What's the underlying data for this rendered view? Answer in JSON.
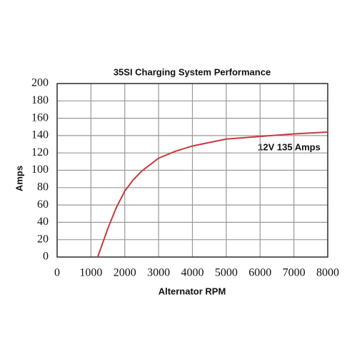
{
  "chart_data": {
    "type": "line",
    "title": "35SI Charging System Performance",
    "x_label": "Alternator RPM",
    "y_label": "Amps",
    "annotation": "12V 135 Amps",
    "x": [
      1200,
      1500,
      1750,
      2000,
      2250,
      2500,
      3000,
      3500,
      4000,
      5000,
      6000,
      7000,
      8000
    ],
    "series": [
      {
        "color": "#c8393f",
        "values": [
          0,
          33,
          57,
          76,
          89,
          99,
          114,
          122,
          128,
          136,
          139,
          142,
          144
        ]
      }
    ],
    "xlim": [
      0,
      8000
    ],
    "xticks": [
      0,
      1000,
      2000,
      3000,
      4000,
      5000,
      6000,
      7000,
      8000
    ],
    "ylim": [
      0,
      200
    ],
    "yticks": [
      0,
      20,
      40,
      60,
      80,
      100,
      120,
      140,
      160,
      180,
      200
    ],
    "grid": true
  }
}
